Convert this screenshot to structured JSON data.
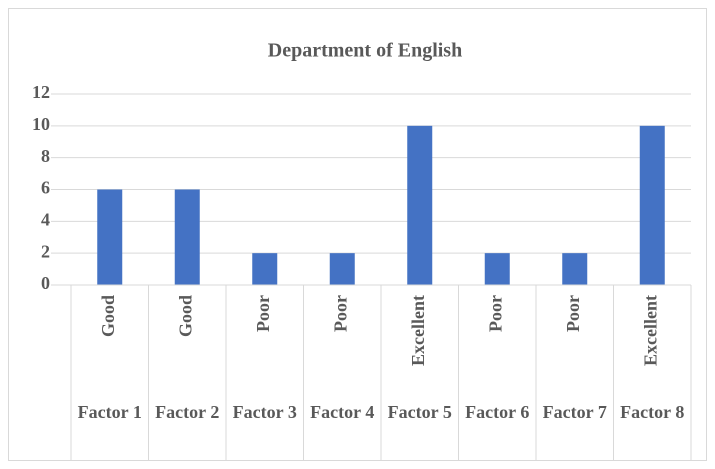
{
  "chart_data": {
    "type": "bar",
    "title": "Department of English",
    "categories": [
      "Good",
      "Good",
      "Poor",
      "Poor",
      "Excellent",
      "Poor",
      "Poor",
      "Excellent"
    ],
    "groups": [
      "Factor 1",
      "Factor 2",
      "Factor 3",
      "Factor 4",
      "Factor 5",
      "Factor 6",
      "Factor 7",
      "Factor 8"
    ],
    "values": [
      6,
      6,
      2,
      2,
      10,
      2,
      2,
      10
    ],
    "color": "#4472c4",
    "ylim": [
      0,
      12
    ],
    "yticks": [
      0,
      2,
      4,
      6,
      8,
      10,
      12
    ],
    "grid": true
  }
}
